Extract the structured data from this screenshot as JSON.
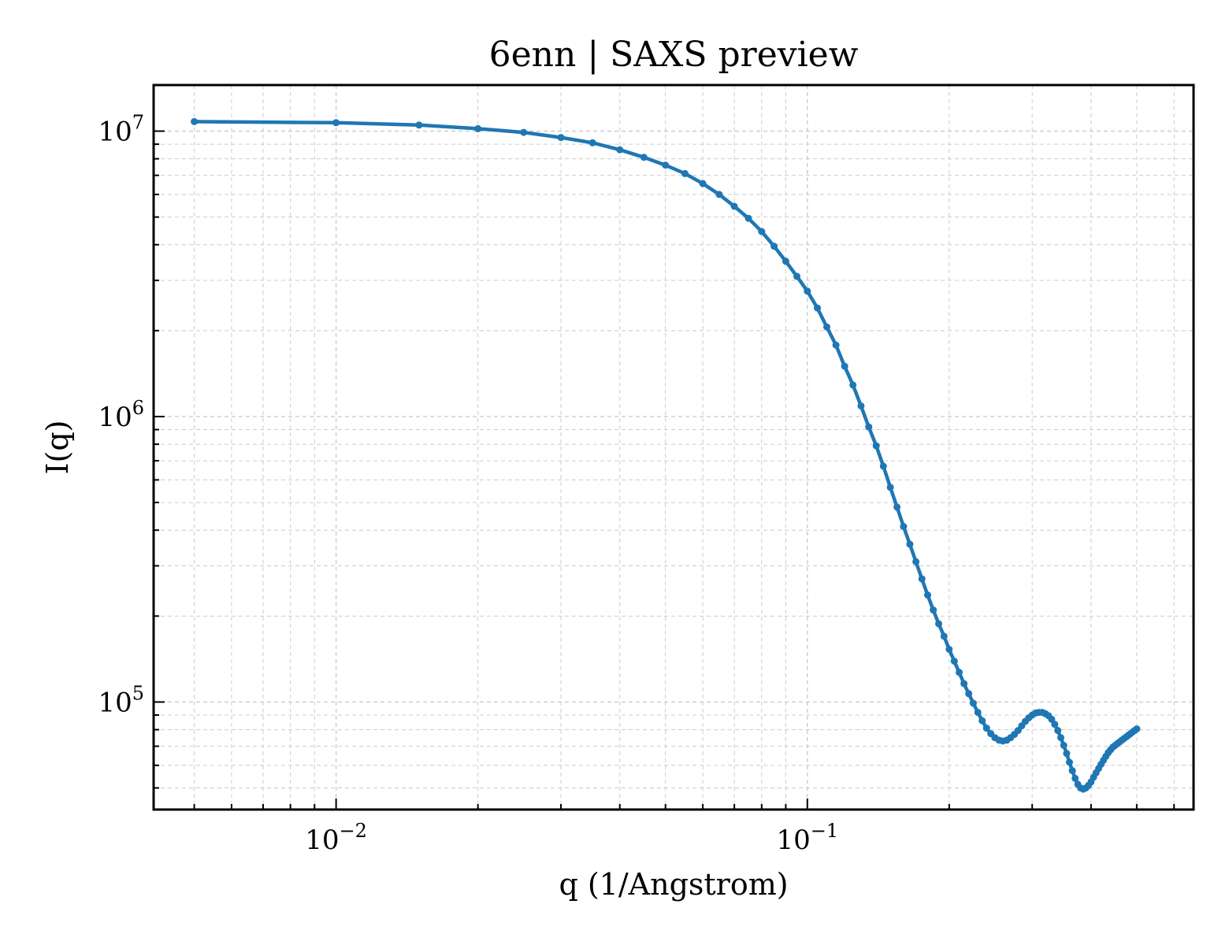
{
  "chart_data": {
    "type": "line",
    "title": "6enn | SAXS preview",
    "xlabel": "q (1/Angstrom)",
    "ylabel": "I(q)",
    "x_scale": "log",
    "y_scale": "log",
    "xlim": [
      0.0041,
      0.66
    ],
    "ylim": [
      42000,
      14500000
    ],
    "grid": true,
    "legend": "none",
    "x_ticks": [
      {
        "value": 0.01,
        "base": "10",
        "exp": "−2"
      },
      {
        "value": 0.1,
        "base": "10",
        "exp": "−1"
      }
    ],
    "y_ticks": [
      {
        "value": 100000,
        "base": "10",
        "exp": "5"
      },
      {
        "value": 1000000,
        "base": "10",
        "exp": "6"
      },
      {
        "value": 10000000,
        "base": "10",
        "exp": "7"
      }
    ],
    "series": [
      {
        "color": "#1f77b4",
        "x": [
          0.005,
          0.01,
          0.015,
          0.02,
          0.025,
          0.03,
          0.035,
          0.04,
          0.045,
          0.05,
          0.055,
          0.06,
          0.065,
          0.07,
          0.075,
          0.08,
          0.085,
          0.09,
          0.095,
          0.1,
          0.105,
          0.11,
          0.115,
          0.12,
          0.125,
          0.13,
          0.135,
          0.14,
          0.145,
          0.15,
          0.155,
          0.16,
          0.165,
          0.17,
          0.175,
          0.18,
          0.185,
          0.19,
          0.195,
          0.2,
          0.205,
          0.21,
          0.215,
          0.22,
          0.225,
          0.23,
          0.235,
          0.24,
          0.245,
          0.25,
          0.255,
          0.26,
          0.265,
          0.27,
          0.275,
          0.28,
          0.285,
          0.29,
          0.295,
          0.3,
          0.305,
          0.31,
          0.315,
          0.32,
          0.325,
          0.33,
          0.335,
          0.34,
          0.345,
          0.35,
          0.355,
          0.36,
          0.365,
          0.37,
          0.375,
          0.38,
          0.385,
          0.39,
          0.395,
          0.4,
          0.405,
          0.41,
          0.415,
          0.42,
          0.425,
          0.43,
          0.435,
          0.44,
          0.445,
          0.45,
          0.455,
          0.46,
          0.465,
          0.47,
          0.475,
          0.48,
          0.485,
          0.49,
          0.495,
          0.5
        ],
        "y": [
          10800000,
          10700000,
          10500000,
          10200000,
          9900000,
          9500000,
          9100000,
          8600000,
          8100000,
          7600000,
          7100000,
          6550000,
          6000000,
          5450000,
          4950000,
          4450000,
          3950000,
          3500000,
          3100000,
          2750000,
          2400000,
          2060000,
          1780000,
          1500000,
          1290000,
          1090000,
          920000,
          790000,
          670000,
          565000,
          482000,
          412000,
          357000,
          310000,
          270000,
          237000,
          210000,
          188000,
          170000,
          153000,
          139000,
          127000,
          116000,
          107000,
          99000,
          92000,
          86000,
          81000,
          77500,
          75000,
          73500,
          73000,
          73500,
          75000,
          77000,
          79500,
          82500,
          85500,
          88000,
          90000,
          91500,
          92000,
          92000,
          91000,
          89500,
          87000,
          83500,
          79500,
          75000,
          70500,
          66000,
          61500,
          57500,
          54000,
          51500,
          50000,
          49500,
          50000,
          51000,
          52500,
          54500,
          56500,
          58500,
          60500,
          62500,
          64500,
          66500,
          68000,
          69500,
          70500,
          71500,
          72500,
          73500,
          74500,
          75500,
          76500,
          77500,
          78500,
          79500,
          80500
        ]
      }
    ]
  }
}
